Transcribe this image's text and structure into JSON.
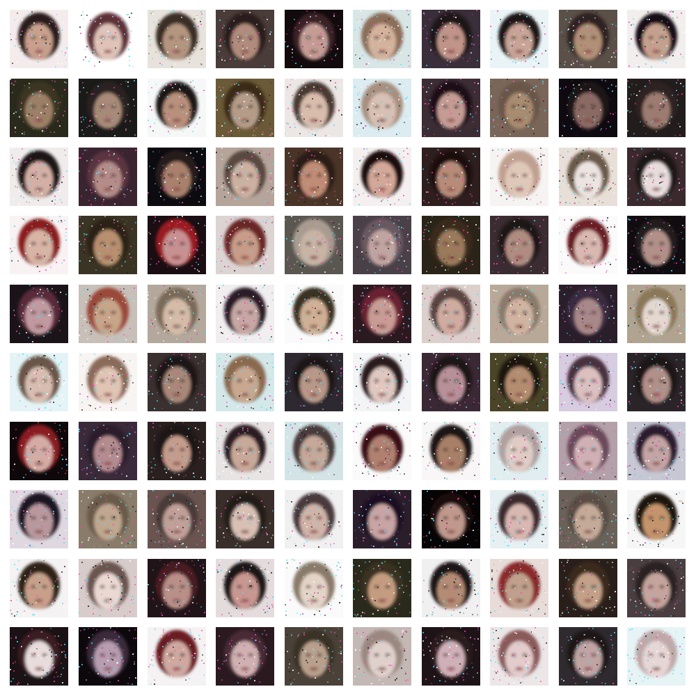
{
  "grid": {
    "rows": 10,
    "cols": 10,
    "samples": [
      {
        "bg": "#f4ecec",
        "hair": "#2a1f1f",
        "skin": "#c8a08c",
        "noise": "#a6d7e0"
      },
      {
        "bg": "#ffffff",
        "hair": "#5e3038",
        "skin": "#e0c2b8",
        "noise": "#8fe8f0"
      },
      {
        "bg": "#e8e2dc",
        "hair": "#3b2e28",
        "skin": "#b49680",
        "noise": "#7a8a4e"
      },
      {
        "bg": "#4a3c38",
        "hair": "#2a1e1e",
        "skin": "#b08c7c",
        "noise": "#6e5a56"
      },
      {
        "bg": "#120a0c",
        "hair": "#3a2028",
        "skin": "#c49c94",
        "noise": "#b0207a"
      },
      {
        "bg": "#d8e6e6",
        "hair": "#8c6e5a",
        "skin": "#d4b29c",
        "noise": "#a0e0e8"
      },
      {
        "bg": "#3a2e3a",
        "hair": "#1e1418",
        "skin": "#c09488",
        "noise": "#8a3aa0"
      },
      {
        "bg": "#eaf4f6",
        "hair": "#1a1214",
        "skin": "#c8a496",
        "noise": "#9cdce8"
      },
      {
        "bg": "#5a5048",
        "hair": "#2e2420",
        "skin": "#b09076",
        "noise": "#7c6c58"
      },
      {
        "bg": "#f2eeee",
        "hair": "#141012",
        "skin": "#c6a08e",
        "noise": "#40c050"
      },
      {
        "bg": "#2a2a1c",
        "hair": "#3a3424",
        "skin": "#9c8066",
        "noise": "#6a6a3a"
      },
      {
        "bg": "#1a1a18",
        "hair": "#2a2420",
        "skin": "#a88a78",
        "noise": "#5a8a4a"
      },
      {
        "bg": "#f6f8f8",
        "hair": "#1e1616",
        "skin": "#b8907c",
        "noise": "#c0e8ec"
      },
      {
        "bg": "#6a5a38",
        "hair": "#3a2a14",
        "skin": "#b49c88",
        "noise": "#a09a60"
      },
      {
        "bg": "#ece6e4",
        "hair": "#4a3a30",
        "skin": "#d8bcac",
        "noise": "#c0a89a"
      },
      {
        "bg": "#dcecf0",
        "hair": "#a89080",
        "skin": "#d8c0b4",
        "noise": "#70e0f0"
      },
      {
        "bg": "#3c2c34",
        "hair": "#1c1014",
        "skin": "#c49c94",
        "noise": "#9a3a4a"
      },
      {
        "bg": "#7a6658",
        "hair": "#6a5648",
        "skin": "#a88c70",
        "noise": "#9c7c60"
      },
      {
        "bg": "#0e0a10",
        "hair": "#1e1218",
        "skin": "#8a6a64",
        "noise": "#5a2a4a"
      },
      {
        "bg": "#221c1c",
        "hair": "#2e2424",
        "skin": "#9c7c70",
        "noise": "#6a8a5a"
      },
      {
        "bg": "#f0ecec",
        "hair": "#1e1414",
        "skin": "#d4b0a4",
        "noise": "#c0a0a0"
      },
      {
        "bg": "#3a2430",
        "hair": "#5a3440",
        "skin": "#b48c88",
        "noise": "#a03a6a"
      },
      {
        "bg": "#0c0c10",
        "hair": "#281c1c",
        "skin": "#a8806c",
        "noise": "#5a6a8a"
      },
      {
        "bg": "#b4a49a",
        "hair": "#5a4a40",
        "skin": "#ccb0a0",
        "noise": "#e0e0e0"
      },
      {
        "bg": "#4a3428",
        "hair": "#2a1a14",
        "skin": "#c08c74",
        "noise": "#8a5a3a"
      },
      {
        "bg": "#f4f0f0",
        "hair": "#1a1010",
        "skin": "#d4a898",
        "noise": "#b08aa0"
      },
      {
        "bg": "#2e1e1e",
        "hair": "#1a1010",
        "skin": "#b88a78",
        "noise": "#8a4a3a"
      },
      {
        "bg": "#f6f4f2",
        "hair": "#c0a090",
        "skin": "#e0c8b8",
        "noise": "#d0b0a0"
      },
      {
        "bg": "#e8e0d8",
        "hair": "#6a5a48",
        "skin": "#ece4e0",
        "noise": "#a88a6a"
      },
      {
        "bg": "#3a2a2e",
        "hair": "#1a1214",
        "skin": "#e8dcdc",
        "noise": "#7a3a5a"
      },
      {
        "bg": "#f8f2f2",
        "hair": "#8a1c1c",
        "skin": "#d8b4a4",
        "noise": "#70e0ea"
      },
      {
        "bg": "#3a3424",
        "hair": "#2a2014",
        "skin": "#b89070",
        "noise": "#7a6a3a"
      },
      {
        "bg": "#1a0e12",
        "hair": "#9a1a22",
        "skin": "#c89090",
        "noise": "#d04050"
      },
      {
        "bg": "#dcd4d2",
        "hair": "#6a2828",
        "skin": "#c89c88",
        "noise": "#c0a8a0"
      },
      {
        "bg": "#5a5650",
        "hair": "#a89c90",
        "skin": "#c8b4a4",
        "noise": "#b8b0a8"
      },
      {
        "bg": "#4a4048",
        "hair": "#6a5860",
        "skin": "#c0a4a0",
        "noise": "#80a0c0"
      },
      {
        "bg": "#2a2418",
        "hair": "#3a2c1a",
        "skin": "#9a7a5a",
        "noise": "#6a8a4a"
      },
      {
        "bg": "#3a2c30",
        "hair": "#1e1418",
        "skin": "#b08c80",
        "noise": "#8a4a6a"
      },
      {
        "bg": "#fafafa",
        "hair": "#6a1c24",
        "skin": "#d8b8b0",
        "noise": "#a0e0e8"
      },
      {
        "bg": "#100c10",
        "hair": "#241a1e",
        "skin": "#b09088",
        "noise": "#4a3a4a"
      },
      {
        "bg": "#1a1418",
        "hair": "#5a2a3a",
        "skin": "#c09aa0",
        "noise": "#a0a0a0"
      },
      {
        "bg": "#c8c0b8",
        "hair": "#9a4a3a",
        "skin": "#c8a488",
        "noise": "#b09a8a"
      },
      {
        "bg": "#b4a89c",
        "hair": "#7a6a58",
        "skin": "#d4bca8",
        "noise": "#e0d8d0"
      },
      {
        "bg": "#f0eeee",
        "hair": "#2a1e28",
        "skin": "#c8a8a4",
        "noise": "#a0b0d0"
      },
      {
        "bg": "#fafafa",
        "hair": "#3a3020",
        "skin": "#d0b094",
        "noise": "#40c0a0"
      },
      {
        "bg": "#2a1a20",
        "hair": "#6a2430",
        "skin": "#c89c94",
        "noise": "#a04a6a"
      },
      {
        "bg": "#dcd0cc",
        "hair": "#5a4440",
        "skin": "#d0aca0",
        "noise": "#b090a0"
      },
      {
        "bg": "#b8a898",
        "hair": "#8a7a6a",
        "skin": "#d0b4a0",
        "noise": "#c8c0b8"
      },
      {
        "bg": "#2a1e2a",
        "hair": "#3a2a40",
        "skin": "#a88888",
        "noise": "#7a4aa0"
      },
      {
        "bg": "#b0a490",
        "hair": "#8a7858",
        "skin": "#e4d8d0",
        "noise": "#c8b8a0"
      },
      {
        "bg": "#e4f4f6",
        "hair": "#6a5448",
        "skin": "#d8beb0",
        "noise": "#90e0ec"
      },
      {
        "bg": "#f8f4f2",
        "hair": "#8a6a58",
        "skin": "#e0c4b4",
        "noise": "#a8d8e4"
      },
      {
        "bg": "#3a3030",
        "hair": "#1e1616",
        "skin": "#a88878",
        "noise": "#6a6a7a"
      },
      {
        "bg": "#d4e8ea",
        "hair": "#8a6a50",
        "skin": "#c8a890",
        "noise": "#70d8e0"
      },
      {
        "bg": "#2e2830",
        "hair": "#1e1618",
        "skin": "#b89888",
        "noise": "#6a8aa0"
      },
      {
        "bg": "#f2f4f6",
        "hair": "#2a1a1e",
        "skin": "#e0c8c0",
        "noise": "#b08a9a"
      },
      {
        "bg": "#3a2834",
        "hair": "#1e1218",
        "skin": "#b89098",
        "noise": "#8a4a8a"
      },
      {
        "bg": "#4a4428",
        "hair": "#1a140e",
        "skin": "#b48c70",
        "noise": "#6aa05a"
      },
      {
        "bg": "#d8cce0",
        "hair": "#4a3040",
        "skin": "#dcc0c0",
        "noise": "#a070c0"
      },
      {
        "bg": "#2a2428",
        "hair": "#1a1418",
        "skin": "#b09088",
        "noise": "#4a9a7a"
      },
      {
        "bg": "#0e080a",
        "hair": "#8a1a24",
        "skin": "#d4aca4",
        "noise": "#c03a40"
      },
      {
        "bg": "#3a2a3a",
        "hair": "#2a1a2a",
        "skin": "#b48c90",
        "noise": "#b040a0"
      },
      {
        "bg": "#2a2020",
        "hair": "#1a1212",
        "skin": "#c49c8c",
        "noise": "#7a5a5a"
      },
      {
        "bg": "#e8e4e4",
        "hair": "#2a1e22",
        "skin": "#c8a898",
        "noise": "#8ad8e0"
      },
      {
        "bg": "#d4e4e6",
        "hair": "#4a3a3a",
        "skin": "#c4a898",
        "noise": "#80e0ea"
      },
      {
        "bg": "#fafafa",
        "hair": "#3a1014",
        "skin": "#b08070",
        "noise": "#7a2a3a"
      },
      {
        "bg": "#f8f6f6",
        "hair": "#1e1612",
        "skin": "#a88068",
        "noise": "#8a6a5a"
      },
      {
        "bg": "#e0eef0",
        "hair": "#b0a0a0",
        "skin": "#e0ccc4",
        "noise": "#b8e8ec"
      },
      {
        "bg": "#b4a0a8",
        "hair": "#6a4a5a",
        "skin": "#d0b0b4",
        "noise": "#a080a0"
      },
      {
        "bg": "#c8c8d4",
        "hair": "#2a1e2e",
        "skin": "#c4a4a4",
        "noise": "#7a6aa0"
      },
      {
        "bg": "#e0d8e0",
        "hair": "#1e1420",
        "skin": "#b8989c",
        "noise": "#6a4aa0"
      },
      {
        "bg": "#8a7c6a",
        "hair": "#6a5a48",
        "skin": "#c0a890",
        "noise": "#a89a78"
      },
      {
        "bg": "#6a5450",
        "hair": "#4a3a38",
        "skin": "#c0a098",
        "noise": "#a08a9a"
      },
      {
        "bg": "#3a2e2a",
        "hair": "#241a18",
        "skin": "#d8c0b4",
        "noise": "#b8a0a8"
      },
      {
        "bg": "#f0f0f0",
        "hair": "#4a3a3e",
        "skin": "#d0b4a8",
        "noise": "#90d8e4"
      },
      {
        "bg": "#2a1e2a",
        "hair": "#1a1020",
        "skin": "#c8a4a4",
        "noise": "#4a4aa0"
      },
      {
        "bg": "#060404",
        "hair": "#1a1010",
        "skin": "#c0988c",
        "noise": "#6a3a3a"
      },
      {
        "bg": "#e6f0f2",
        "hair": "#3a2a2e",
        "skin": "#d8b8b0",
        "noise": "#8ae0ec"
      },
      {
        "bg": "#6a6258",
        "hair": "#5a4e44",
        "skin": "#c4aa98",
        "noise": "#9c8c7a"
      },
      {
        "bg": "#f6f6f6",
        "hair": "#1a1210",
        "skin": "#c4946c",
        "noise": "#c0a07a"
      },
      {
        "bg": "#f4f2f2",
        "hair": "#2e2018",
        "skin": "#c8a08a",
        "noise": "#a0d8e0"
      },
      {
        "bg": "#d8ccca",
        "hair": "#6a5450",
        "skin": "#ead8d2",
        "noise": "#c0a8a8"
      },
      {
        "bg": "#201418",
        "hair": "#4a1a24",
        "skin": "#b89088",
        "noise": "#8a3a5a"
      },
      {
        "bg": "#e4dcdc",
        "hair": "#1a1214",
        "skin": "#c89890",
        "noise": "#9a6aa0"
      },
      {
        "bg": "#fafafa",
        "hair": "#8a7a6a",
        "skin": "#e4d4c8",
        "noise": "#a0d8a0"
      },
      {
        "bg": "#2a2a1c",
        "hair": "#3a3020",
        "skin": "#c49c80",
        "noise": "#60b060"
      },
      {
        "bg": "#f0f0f0",
        "hair": "#1e1614",
        "skin": "#b48c74",
        "noise": "#80a0a0"
      },
      {
        "bg": "#e8dcd8",
        "hair": "#8a2a2a",
        "skin": "#c0a08c",
        "noise": "#d0a0a0"
      },
      {
        "bg": "#2a1e1a",
        "hair": "#3a2a1e",
        "skin": "#c4a088",
        "noise": "#5a9a6a"
      },
      {
        "bg": "#4a3e40",
        "hair": "#2a2024",
        "skin": "#c4a49c",
        "noise": "#7a5a8a"
      },
      {
        "bg": "#1a1214",
        "hair": "#3a1e24",
        "skin": "#e8dcdc",
        "noise": "#d04060"
      },
      {
        "bg": "#0c080c",
        "hair": "#3a2a3a",
        "skin": "#b89cb0",
        "noise": "#a050a0"
      },
      {
        "bg": "#f4f2f2",
        "hair": "#6a1c24",
        "skin": "#d0a8a0",
        "noise": "#c07080"
      },
      {
        "bg": "#2a1a20",
        "hair": "#4a2a34",
        "skin": "#d0b0b0",
        "noise": "#c060a0"
      },
      {
        "bg": "#4a4238",
        "hair": "#3a3028",
        "skin": "#b8a08c",
        "noise": "#8a7a6a"
      },
      {
        "bg": "#c4b8b4",
        "hair": "#9a8880",
        "skin": "#e0d0cc",
        "noise": "#c8b4b4"
      },
      {
        "bg": "#1e1418",
        "hair": "#2a1a1e",
        "skin": "#d0b0b8",
        "noise": "#a04080"
      },
      {
        "bg": "#ece6e6",
        "hair": "#8a5a5a",
        "skin": "#e4cccc",
        "noise": "#c8a0b0"
      },
      {
        "bg": "#2e2a2e",
        "hair": "#1a1418",
        "skin": "#c0a4a4",
        "noise": "#5a6aa0"
      },
      {
        "bg": "#e6f4f6",
        "hair": "#c0a8a8",
        "skin": "#e6d6d4",
        "noise": "#70e8f0"
      }
    ]
  }
}
